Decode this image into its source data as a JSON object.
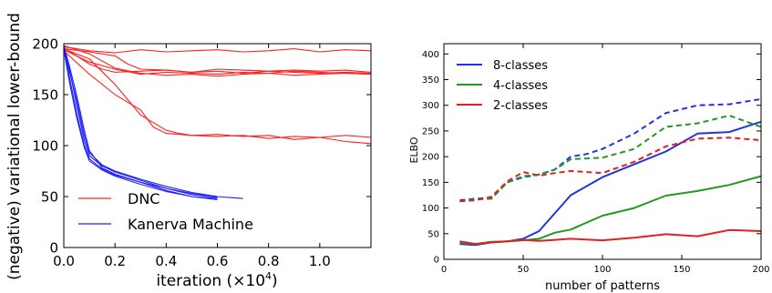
{
  "chart_data": [
    {
      "type": "line",
      "xlabel": "iteration (×10",
      "xlabel_sup": "4",
      "xlabel_end": ")",
      "ylabel": "(negative) variational lower-bound",
      "xlim": [
        0,
        1.2
      ],
      "ylim": [
        0,
        200
      ],
      "xticks": [
        0.0,
        0.2,
        0.4,
        0.6,
        0.8,
        1.0
      ],
      "xtick_labels": [
        "0.0",
        "0.2",
        "0.4",
        "0.6",
        "0.8",
        "1.0"
      ],
      "yticks": [
        0,
        50,
        100,
        150,
        200
      ],
      "ytick_labels": [
        "0",
        "50",
        "100",
        "150",
        "200"
      ],
      "legend_position": "bottom-left",
      "grid": false,
      "series": [
        {
          "name": "DNC",
          "color": "#ff2020",
          "legend": true,
          "x": [
            0,
            0.05,
            0.1,
            0.2,
            0.3,
            0.4,
            0.5,
            0.6,
            0.7,
            0.8,
            0.9,
            1.0,
            1.1,
            1.2
          ],
          "y": [
            197,
            195,
            193,
            191,
            194,
            192,
            193,
            194,
            192,
            193,
            195,
            192,
            194,
            193
          ]
        },
        {
          "name": "",
          "color": "#ff2020",
          "legend": false,
          "x": [
            0,
            0.05,
            0.1,
            0.15,
            0.2,
            0.3,
            0.4,
            0.5,
            0.6,
            0.7,
            0.8,
            0.9,
            1.0,
            1.1,
            1.2
          ],
          "y": [
            196,
            188,
            180,
            175,
            172,
            173,
            174,
            172,
            173,
            171,
            173,
            172,
            171,
            172,
            171
          ]
        },
        {
          "name": "",
          "color": "#ff2020",
          "legend": false,
          "x": [
            0,
            0.1,
            0.2,
            0.25,
            0.3,
            0.4,
            0.5,
            0.6,
            0.7,
            0.8,
            0.9,
            1.0,
            1.1,
            1.2
          ],
          "y": [
            195,
            192,
            188,
            180,
            175,
            174,
            172,
            175,
            174,
            173,
            174,
            173,
            174,
            172
          ]
        },
        {
          "name": "",
          "color": "#ff2020",
          "legend": false,
          "x": [
            0,
            0.1,
            0.2,
            0.3,
            0.4,
            0.5,
            0.6,
            0.7,
            0.8,
            0.9,
            1.0,
            1.1,
            1.2
          ],
          "y": [
            194,
            182,
            175,
            170,
            172,
            171,
            170,
            172,
            171,
            173,
            172,
            171,
            170
          ]
        },
        {
          "name": "",
          "color": "#ff2020",
          "legend": false,
          "x": [
            0,
            0.1,
            0.2,
            0.3,
            0.4,
            0.5,
            0.6,
            0.7,
            0.8,
            0.9,
            1.0,
            1.1,
            1.2
          ],
          "y": [
            198,
            190,
            176,
            171,
            169,
            170,
            168,
            170,
            171,
            169,
            170,
            171,
            170
          ]
        },
        {
          "name": "",
          "color": "#ff2020",
          "legend": false,
          "x": [
            0,
            0.1,
            0.2,
            0.3,
            0.4,
            0.45,
            0.5,
            0.6,
            0.7,
            0.8,
            0.9,
            1.0,
            1.1,
            1.2
          ],
          "y": [
            195,
            185,
            160,
            130,
            115,
            112,
            110,
            109,
            110,
            107,
            109,
            108,
            110,
            108
          ]
        },
        {
          "name": "",
          "color": "#ff2020",
          "legend": false,
          "x": [
            0,
            0.1,
            0.2,
            0.3,
            0.35,
            0.4,
            0.5,
            0.6,
            0.7,
            0.8,
            0.9,
            1.0,
            1.1,
            1.2
          ],
          "y": [
            193,
            170,
            150,
            135,
            118,
            112,
            110,
            111,
            109,
            110,
            106,
            108,
            104,
            102
          ]
        },
        {
          "name": "Kanerva Machine",
          "color": "#2020ff",
          "legend": true,
          "x": [
            0,
            0.02,
            0.05,
            0.08,
            0.1,
            0.15,
            0.2,
            0.3,
            0.4,
            0.5,
            0.6,
            0.7
          ],
          "y": [
            198,
            180,
            150,
            115,
            95,
            78,
            72,
            64,
            58,
            53,
            50,
            48
          ]
        },
        {
          "name": "",
          "color": "#2020ff",
          "legend": false,
          "x": [
            0,
            0.02,
            0.05,
            0.08,
            0.1,
            0.15,
            0.2,
            0.3,
            0.4,
            0.5,
            0.6
          ],
          "y": [
            196,
            178,
            140,
            105,
            90,
            80,
            74,
            66,
            58,
            52,
            49
          ]
        },
        {
          "name": "",
          "color": "#2020ff",
          "legend": false,
          "x": [
            0,
            0.02,
            0.05,
            0.08,
            0.1,
            0.15,
            0.2,
            0.3,
            0.4,
            0.5,
            0.6
          ],
          "y": [
            195,
            170,
            132,
            100,
            87,
            77,
            71,
            64,
            56,
            50,
            48
          ]
        },
        {
          "name": "",
          "color": "#2020ff",
          "legend": false,
          "x": [
            0,
            0.02,
            0.05,
            0.08,
            0.1,
            0.15,
            0.2,
            0.3,
            0.4,
            0.5,
            0.6
          ],
          "y": [
            197,
            175,
            145,
            110,
            93,
            81,
            75,
            67,
            60,
            54,
            50
          ]
        },
        {
          "name": "",
          "color": "#2020ff",
          "legend": false,
          "x": [
            0,
            0.02,
            0.05,
            0.08,
            0.1,
            0.15,
            0.2,
            0.3,
            0.4,
            0.5,
            0.6
          ],
          "y": [
            194,
            165,
            128,
            98,
            85,
            76,
            70,
            62,
            55,
            50,
            47
          ]
        }
      ]
    },
    {
      "type": "line",
      "xlabel": "number of patterns",
      "ylabel": "ELBO",
      "xlim": [
        0,
        200
      ],
      "ylim": [
        0,
        420
      ],
      "xticks": [
        0,
        50,
        100,
        150,
        200
      ],
      "xtick_labels": [
        "0",
        "50",
        "100",
        "150",
        "200"
      ],
      "yticks": [
        0,
        50,
        100,
        150,
        200,
        250,
        300,
        350,
        400
      ],
      "ytick_labels": [
        "0",
        "50",
        "100",
        "150",
        "200",
        "250",
        "300",
        "350",
        "400"
      ],
      "legend_position": "top-left",
      "grid": false,
      "series": [
        {
          "name": "8-classes",
          "color": "#2233dd",
          "dash": false,
          "legend": true,
          "x": [
            10,
            20,
            30,
            40,
            50,
            60,
            80,
            100,
            120,
            140,
            160,
            180,
            200
          ],
          "y": [
            30,
            28,
            33,
            35,
            40,
            55,
            125,
            160,
            185,
            210,
            245,
            248,
            268
          ]
        },
        {
          "name": "4-classes",
          "color": "#229922",
          "dash": false,
          "legend": true,
          "x": [
            10,
            20,
            30,
            40,
            50,
            60,
            70,
            80,
            100,
            120,
            140,
            160,
            180,
            200
          ],
          "y": [
            32,
            30,
            34,
            35,
            37,
            40,
            52,
            58,
            85,
            100,
            124,
            133,
            145,
            162
          ]
        },
        {
          "name": "2-classes",
          "color": "#dd2222",
          "dash": false,
          "legend": true,
          "x": [
            10,
            20,
            30,
            40,
            50,
            60,
            70,
            80,
            100,
            120,
            140,
            160,
            180,
            200
          ],
          "y": [
            35,
            30,
            33,
            35,
            38,
            36,
            38,
            40,
            37,
            42,
            49,
            45,
            57,
            55
          ]
        },
        {
          "name": "",
          "color": "#2233dd",
          "dash": true,
          "legend": false,
          "x": [
            10,
            20,
            30,
            40,
            50,
            60,
            70,
            80,
            90,
            100,
            120,
            140,
            160,
            180,
            200
          ],
          "y": [
            115,
            118,
            120,
            150,
            160,
            165,
            175,
            200,
            205,
            215,
            245,
            285,
            300,
            302,
            312
          ]
        },
        {
          "name": "",
          "color": "#229922",
          "dash": true,
          "legend": false,
          "x": [
            10,
            20,
            30,
            40,
            50,
            60,
            70,
            80,
            100,
            120,
            140,
            160,
            180,
            200
          ],
          "y": [
            113,
            117,
            118,
            150,
            162,
            165,
            175,
            195,
            198,
            215,
            258,
            265,
            280,
            258
          ]
        },
        {
          "name": "",
          "color": "#dd2222",
          "dash": true,
          "legend": false,
          "x": [
            10,
            20,
            30,
            40,
            50,
            60,
            70,
            80,
            100,
            120,
            140,
            160,
            180,
            200
          ],
          "y": [
            113,
            115,
            122,
            152,
            170,
            163,
            168,
            172,
            168,
            190,
            220,
            235,
            237,
            232
          ]
        }
      ]
    }
  ]
}
